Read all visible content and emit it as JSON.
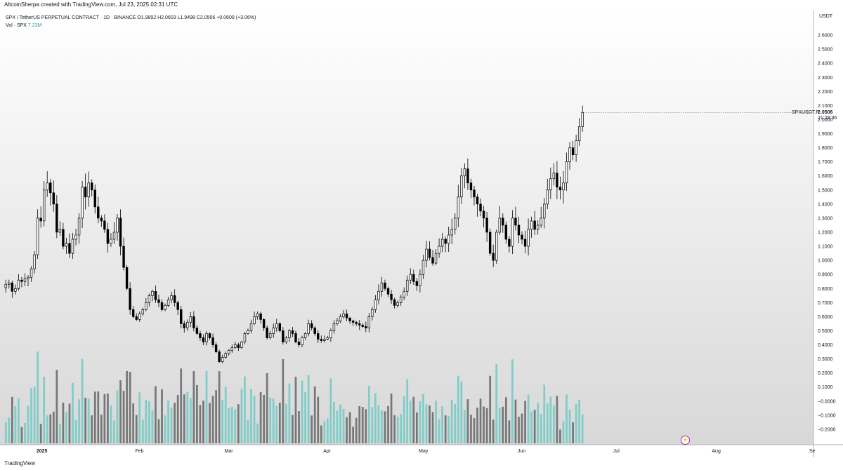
{
  "header": {
    "author_line": "AltcoinSherpa created with TradingView.com, Jul 23, 2025 02:31 UTC"
  },
  "legend": {
    "symbol_line": "SPX / TetherUS PERPETUAL CONTRACT · 1D · BINANCE  O1.9892  H2.0603  L1.9498  C2.0506  +0.0609 (+3.06%)",
    "volume_label": "Vol · SPX",
    "volume_value": "7.23M"
  },
  "price_scale": {
    "currency": "USDT",
    "symbol_tag": "SPXUSDT.P",
    "last_price": "2.0506",
    "countdown": "21:28:36"
  },
  "footer": {
    "brand": "TradingView"
  },
  "colors": {
    "up_candle": "#ffffff",
    "down_candle": "#000000",
    "candle_outline": "#000000",
    "volume_up": "#7ecdc8",
    "volume_down": "#777777",
    "background_top": "#ffffff",
    "background_bottom": "#d8d8d8"
  },
  "icons": {
    "replay": "lightning-icon",
    "logo": "tradingview-logo-icon"
  },
  "chart_data": {
    "type": "candlestick",
    "title": "SPX / TetherUS PERPETUAL CONTRACT · 1D · BINANCE",
    "x_axis_labels": [
      "2025",
      "Feb",
      "Mar",
      "Apr",
      "May",
      "Jun",
      "Jul",
      "Aug",
      "Se"
    ],
    "y_axis_ticks": [
      "2.6000",
      "2.5000",
      "2.4000",
      "2.3000",
      "2.2000",
      "2.1000",
      "2.0000",
      "1.9000",
      "1.8000",
      "1.7000",
      "1.6000",
      "1.5000",
      "1.4000",
      "1.3000",
      "1.2000",
      "1.1000",
      "1.0000",
      "0.9000",
      "0.8000",
      "0.7000",
      "0.6000",
      "0.5000",
      "0.4000",
      "0.3000",
      "0.2000",
      "0.1000",
      "−0.0000",
      "−0.1000",
      "−0.2000"
    ],
    "ylim": [
      -0.28,
      2.7
    ],
    "x_range_days": {
      "start": "2024-12-21",
      "end": "2025-09-01"
    },
    "daily_closes": [
      0.83,
      0.84,
      0.78,
      0.8,
      0.86,
      0.85,
      0.87,
      0.88,
      0.94,
      1.04,
      1.3,
      1.28,
      1.5,
      1.55,
      1.48,
      1.4,
      1.2,
      1.22,
      1.1,
      1.12,
      1.05,
      1.15,
      1.18,
      1.3,
      1.52,
      1.45,
      1.55,
      1.5,
      1.38,
      1.3,
      1.28,
      1.22,
      1.12,
      1.15,
      1.2,
      1.3,
      1.1,
      0.95,
      0.8,
      0.65,
      0.6,
      0.58,
      0.62,
      0.65,
      0.7,
      0.75,
      0.78,
      0.72,
      0.7,
      0.65,
      0.68,
      0.72,
      0.75,
      0.7,
      0.65,
      0.55,
      0.52,
      0.56,
      0.6,
      0.52,
      0.48,
      0.45,
      0.42,
      0.48,
      0.45,
      0.4,
      0.35,
      0.28,
      0.31,
      0.34,
      0.36,
      0.38,
      0.4,
      0.38,
      0.42,
      0.48,
      0.5,
      0.55,
      0.6,
      0.62,
      0.58,
      0.52,
      0.45,
      0.48,
      0.52,
      0.55,
      0.5,
      0.42,
      0.45,
      0.5,
      0.48,
      0.42,
      0.4,
      0.45,
      0.48,
      0.55,
      0.52,
      0.48,
      0.44,
      0.43,
      0.44,
      0.45,
      0.5,
      0.55,
      0.57,
      0.6,
      0.62,
      0.59,
      0.57,
      0.56,
      0.55,
      0.54,
      0.53,
      0.52,
      0.6,
      0.65,
      0.72,
      0.78,
      0.84,
      0.8,
      0.76,
      0.72,
      0.68,
      0.7,
      0.74,
      0.78,
      0.86,
      0.9,
      0.85,
      0.82,
      0.9,
      1.0,
      1.08,
      1.02,
      0.98,
      1.05,
      1.1,
      1.15,
      1.12,
      1.18,
      1.22,
      1.3,
      1.45,
      1.6,
      1.65,
      1.55,
      1.5,
      1.45,
      1.4,
      1.35,
      1.3,
      1.2,
      1.05,
      1.0,
      1.2,
      1.3,
      1.25,
      1.15,
      1.1,
      1.3,
      1.25,
      1.18,
      1.15,
      1.1,
      1.22,
      1.28,
      1.22,
      1.25,
      1.3,
      1.4,
      1.5,
      1.58,
      1.62,
      1.52,
      1.5,
      1.55,
      1.7,
      1.8,
      1.75,
      1.85,
      1.95,
      2.0506
    ],
    "volume_unit": "relative",
    "volume_ylim": [
      0,
      1
    ]
  }
}
